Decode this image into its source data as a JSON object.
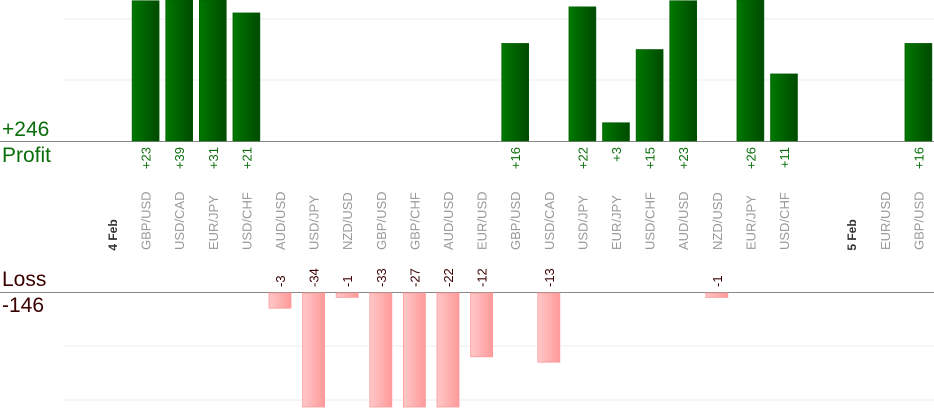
{
  "chart_data": {
    "type": "bar",
    "title": "",
    "profit_label": "Profit",
    "profit_total": "+246",
    "loss_label": "Loss",
    "loss_total": "-146",
    "gridline_step": 10,
    "colors": {
      "profit": "#006400",
      "loss": "#ffaaaa",
      "profit_text": "#0a6e0a",
      "loss_text": "#3a0000",
      "axis": "#888888",
      "grid": "#eeeeee",
      "category_text": "#999999",
      "date_text": "#333333"
    },
    "columns": [
      {
        "type": "date",
        "label": "4 Feb"
      },
      {
        "label": "GBP/USD",
        "value": 23,
        "value_label": "+23"
      },
      {
        "label": "USD/CAD",
        "value": 39,
        "value_label": "+39"
      },
      {
        "label": "EUR/JPY",
        "value": 31,
        "value_label": "+31"
      },
      {
        "label": "USD/CHF",
        "value": 21,
        "value_label": "+21"
      },
      {
        "label": "AUD/USD",
        "value": -3,
        "value_label": "-3"
      },
      {
        "label": "USD/JPY",
        "value": -34,
        "value_label": "-34"
      },
      {
        "label": "NZD/USD",
        "value": -1,
        "value_label": "-1"
      },
      {
        "label": "GBP/USD",
        "value": -33,
        "value_label": "-33"
      },
      {
        "label": "GBP/CHF",
        "value": -27,
        "value_label": "-27"
      },
      {
        "label": "AUD/USD",
        "value": -22,
        "value_label": "-22"
      },
      {
        "label": "EUR/USD",
        "value": -12,
        "value_label": "-12"
      },
      {
        "label": "GBP/USD",
        "value": 16,
        "value_label": "+16"
      },
      {
        "label": "USD/CAD",
        "value": -13,
        "value_label": "-13"
      },
      {
        "label": "USD/JPY",
        "value": 22,
        "value_label": "+22"
      },
      {
        "label": "EUR/JPY",
        "value": 3,
        "value_label": "+3"
      },
      {
        "label": "USD/CHF",
        "value": 15,
        "value_label": "+15"
      },
      {
        "label": "AUD/USD",
        "value": 23,
        "value_label": "+23"
      },
      {
        "label": "NZD/USD",
        "value": -1,
        "value_label": "-1"
      },
      {
        "label": "EUR/JPY",
        "value": 26,
        "value_label": "+26"
      },
      {
        "label": "USD/CHF",
        "value": 11,
        "value_label": "+11"
      },
      {
        "type": "gap"
      },
      {
        "type": "date",
        "label": "5 Feb"
      },
      {
        "label": "EUR/USD",
        "value": null
      },
      {
        "label": "GBP/USD",
        "value": 16,
        "value_label": "+16"
      }
    ]
  }
}
